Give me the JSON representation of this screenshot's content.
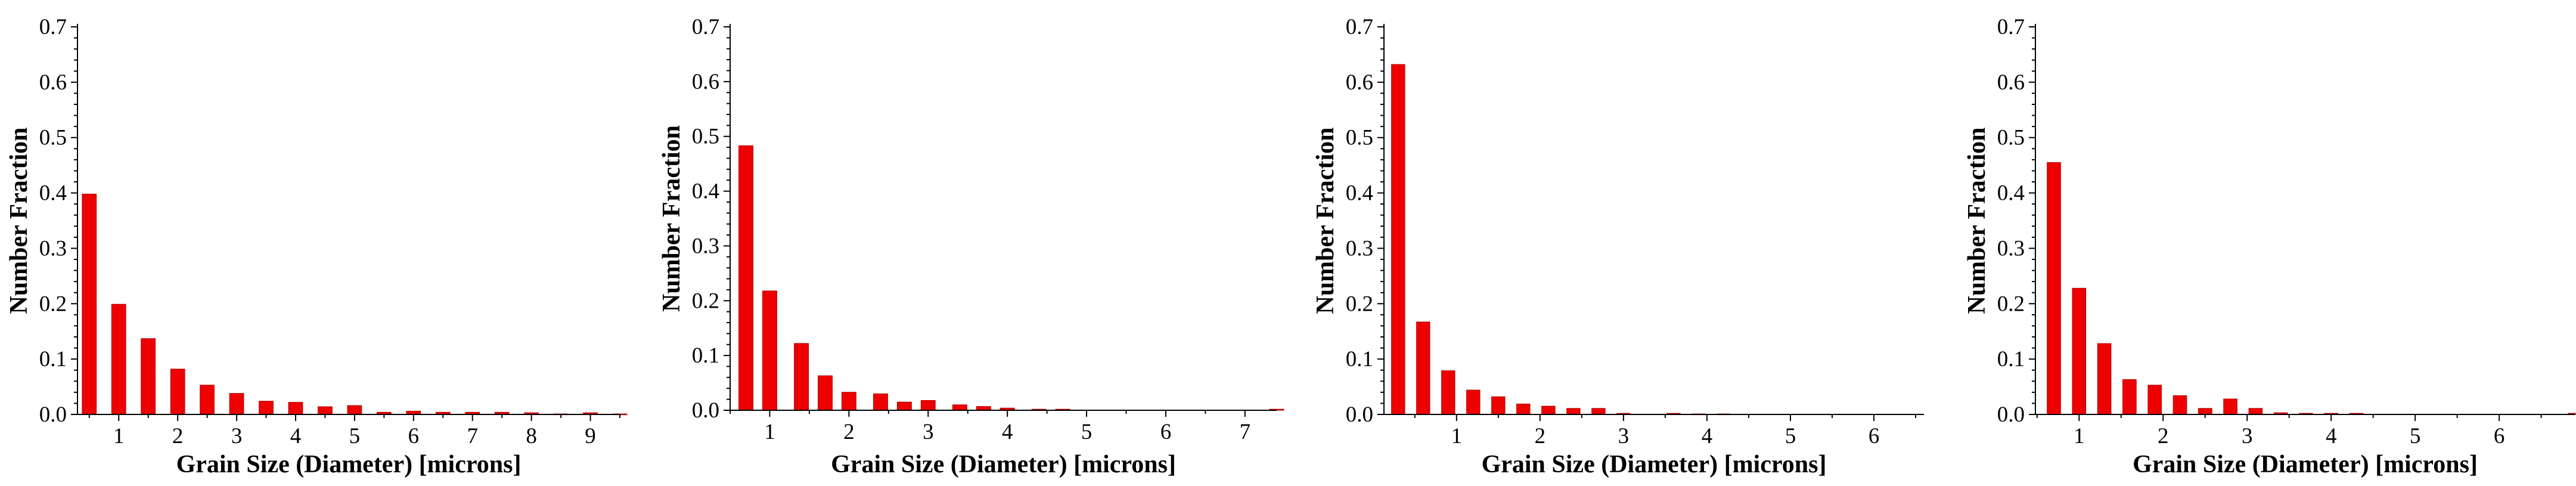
{
  "colors": {
    "bar": "#ee0000",
    "bar_edge": "#b00000",
    "axis": "#000000",
    "background": "#ffffff"
  },
  "chart_data": [
    {
      "type": "bar",
      "title": "",
      "xlabel": "Grain Size (Diameter) [microns]",
      "ylabel": "Number Fraction",
      "xlim": [
        0.3,
        9.5
      ],
      "ylim": [
        0,
        0.7
      ],
      "xticks": [
        "1",
        "2",
        "3",
        "4",
        "5",
        "6",
        "7",
        "8",
        "9"
      ],
      "yticks": [
        "0.0",
        "0.1",
        "0.2",
        "0.3",
        "0.4",
        "0.5",
        "0.6",
        "0.7"
      ],
      "bar_width": 0.24,
      "grid": false,
      "x": [
        0.5,
        1.0,
        1.5,
        2.0,
        2.5,
        3.0,
        3.5,
        4.0,
        4.5,
        5.0,
        5.5,
        6.0,
        6.5,
        7.0,
        7.5,
        8.0,
        8.5,
        9.0,
        9.5
      ],
      "values": [
        0.398,
        0.199,
        0.137,
        0.082,
        0.053,
        0.038,
        0.024,
        0.022,
        0.014,
        0.016,
        0.004,
        0.006,
        0.004,
        0.004,
        0.004,
        0.003,
        0.001,
        0.003,
        0.001
      ]
    },
    {
      "type": "bar",
      "title": "",
      "xlabel": "Grain Size (Diameter) [microns]",
      "ylabel": "Number Fraction",
      "xlim": [
        0.5,
        7.4
      ],
      "ylim": [
        0,
        0.7
      ],
      "xticks": [
        "1",
        "2",
        "3",
        "4",
        "5",
        "6",
        "7"
      ],
      "yticks": [
        "0.0",
        "0.1",
        "0.2",
        "0.3",
        "0.4",
        "0.5",
        "0.6",
        "0.7"
      ],
      "bar_width": 0.18,
      "grid": false,
      "x": [
        0.7,
        1.0,
        1.4,
        1.7,
        2.0,
        2.4,
        2.7,
        3.0,
        3.4,
        3.7,
        4.0,
        4.4,
        4.7,
        7.4
      ],
      "values": [
        0.483,
        0.218,
        0.122,
        0.063,
        0.033,
        0.03,
        0.015,
        0.018,
        0.01,
        0.007,
        0.004,
        0.002,
        0.002,
        0.002
      ]
    },
    {
      "type": "bar",
      "title": "",
      "xlabel": "Grain Size (Diameter) [microns]",
      "ylabel": "Number Fraction",
      "xlim": [
        0.13,
        6.6
      ],
      "ylim": [
        0,
        0.7
      ],
      "xticks": [
        "1",
        "2",
        "3",
        "4",
        "5",
        "6"
      ],
      "yticks": [
        "0.0",
        "0.1",
        "0.2",
        "0.3",
        "0.4",
        "0.5",
        "0.6",
        "0.7"
      ],
      "bar_width": 0.16,
      "grid": false,
      "x": [
        0.3,
        0.6,
        0.9,
        1.2,
        1.5,
        1.8,
        2.1,
        2.4,
        2.7,
        3.0,
        3.6,
        3.9,
        4.2
      ],
      "values": [
        0.632,
        0.167,
        0.079,
        0.044,
        0.032,
        0.019,
        0.015,
        0.011,
        0.011,
        0.002,
        0.002,
        0.001,
        0.001
      ]
    },
    {
      "type": "bar",
      "title": "",
      "xlabel": "Grain Size (Diameter) [microns]",
      "ylabel": "Number Fraction",
      "xlim": [
        0.48,
        6.9
      ],
      "ylim": [
        0,
        0.7
      ],
      "xticks": [
        "1",
        "2",
        "3",
        "4",
        "5",
        "6"
      ],
      "yticks": [
        "0.0",
        "0.1",
        "0.2",
        "0.3",
        "0.4",
        "0.5",
        "0.6",
        "0.7"
      ],
      "bar_width": 0.16,
      "grid": false,
      "x": [
        0.7,
        1.0,
        1.3,
        1.6,
        1.9,
        2.2,
        2.5,
        2.8,
        3.1,
        3.4,
        3.7,
        4.0,
        4.3,
        6.9
      ],
      "values": [
        0.455,
        0.228,
        0.128,
        0.063,
        0.053,
        0.034,
        0.011,
        0.028,
        0.011,
        0.003,
        0.002,
        0.002,
        0.002,
        0.002
      ]
    }
  ]
}
